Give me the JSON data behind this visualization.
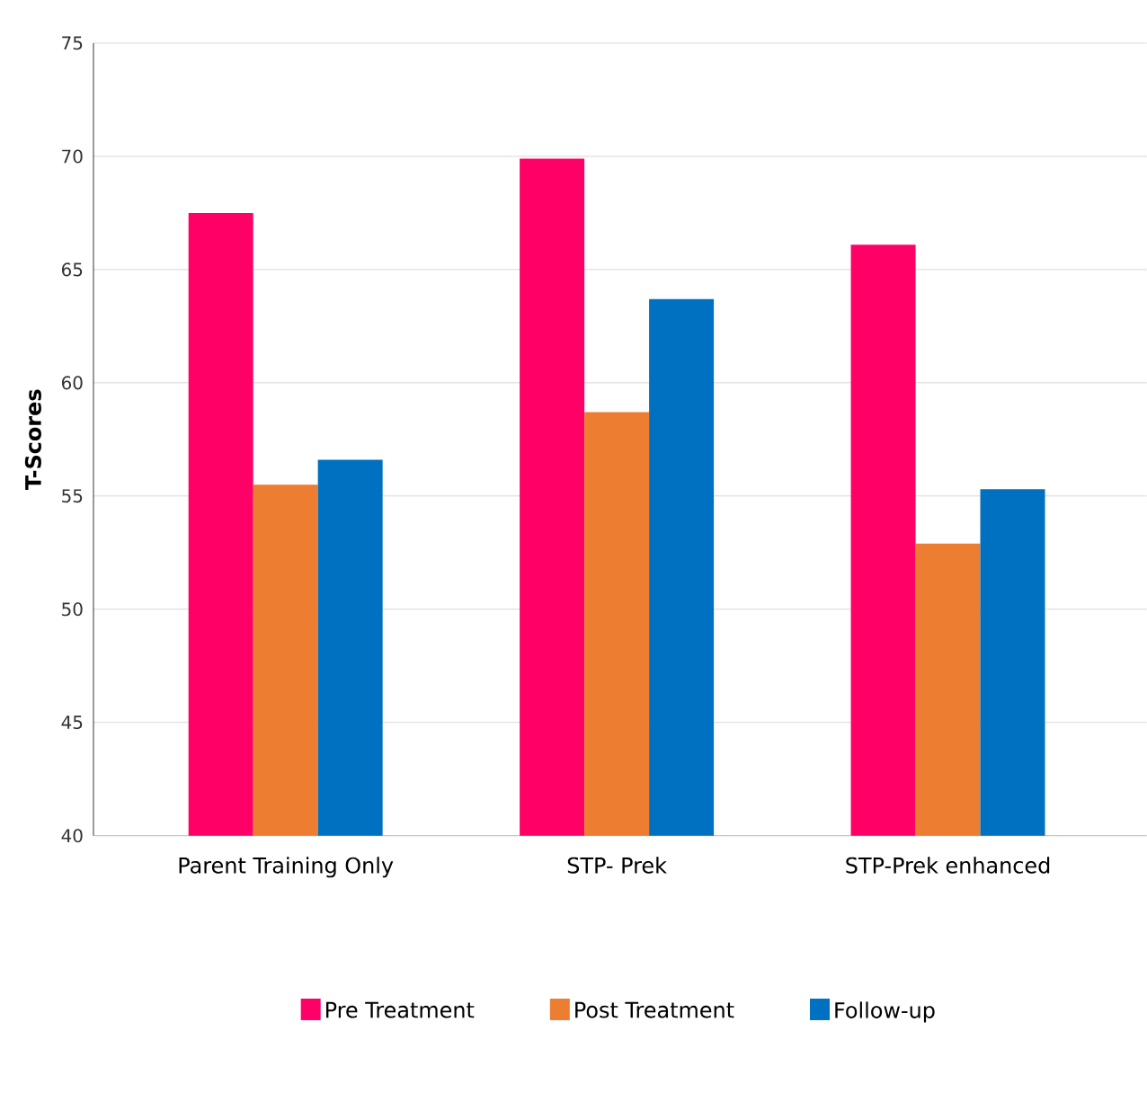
{
  "chart_data": {
    "type": "bar",
    "ylabel": "T-Scores",
    "categories": [
      "Parent Training Only",
      "STP- Prek",
      "STP-Prek enhanced"
    ],
    "series": [
      {
        "name": "Pre Treatment",
        "color": "#ff0066",
        "values": [
          67.5,
          69.9,
          66.1
        ]
      },
      {
        "name": "Post Treatment",
        "color": "#ed7d31",
        "values": [
          55.5,
          58.7,
          52.9
        ]
      },
      {
        "name": "Follow-up",
        "color": "#0070c0",
        "values": [
          56.6,
          63.7,
          55.3
        ]
      }
    ],
    "ylim": [
      40,
      75
    ],
    "yticks": [
      40,
      45,
      50,
      55,
      60,
      65,
      70,
      75
    ],
    "grid": "y",
    "legend": "bottom"
  }
}
